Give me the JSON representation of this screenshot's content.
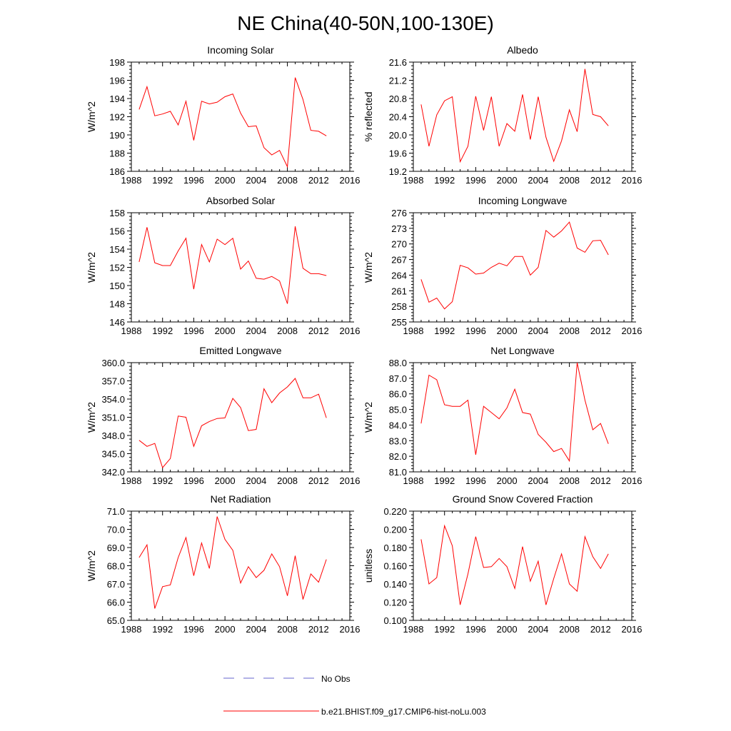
{
  "figure": {
    "title": "NE China(40-50N,100-130E)",
    "colors": {
      "model": "#ff0000",
      "obs": "#6666cc",
      "axis": "#000000"
    }
  },
  "legend": {
    "entries": [
      {
        "label": "No Obs",
        "style": "dashed",
        "color": "#6666cc"
      },
      {
        "label": "b.e21.BHIST.f09_g17.CMIP6-hist-noLu.003",
        "style": "solid",
        "color": "#ff0000"
      }
    ]
  },
  "chart_data": [
    {
      "type": "line",
      "title": "Incoming Solar",
      "ylabel": "W/m^2",
      "xlim": [
        1988,
        2016
      ],
      "xticks": [
        "1988",
        "1992",
        "1996",
        "2000",
        "2004",
        "2008",
        "2012",
        "2016"
      ],
      "ylim": [
        186,
        198
      ],
      "yticks": [
        "186",
        "188",
        "190",
        "192",
        "194",
        "196",
        "198"
      ],
      "x": [
        1989,
        1990,
        1991,
        1992,
        1993,
        1994,
        1995,
        1996,
        1997,
        1998,
        1999,
        2000,
        2001,
        2002,
        2003,
        2004,
        2005,
        2006,
        2007,
        2008,
        2009,
        2010,
        2011,
        2012,
        2013
      ],
      "series": [
        {
          "values": [
            192.8,
            195.3,
            192.1,
            192.3,
            192.6,
            191.1,
            193.7,
            189.4,
            193.7,
            193.4,
            193.6,
            194.2,
            194.5,
            192.4,
            190.9,
            191.0,
            188.6,
            187.8,
            188.3,
            186.5,
            196.3,
            193.9,
            190.5,
            190.4,
            189.9
          ]
        }
      ]
    },
    {
      "type": "line",
      "title": "Albedo",
      "ylabel": "% reflected",
      "xlim": [
        1988,
        2016
      ],
      "xticks": [
        "1988",
        "1992",
        "1996",
        "2000",
        "2004",
        "2008",
        "2012",
        "2016"
      ],
      "ylim": [
        19.2,
        21.6
      ],
      "yticks": [
        "19.2",
        "19.6",
        "20.0",
        "20.4",
        "20.8",
        "21.2",
        "21.6"
      ],
      "x": [
        1989,
        1990,
        1991,
        1992,
        1993,
        1994,
        1995,
        1996,
        1997,
        1998,
        1999,
        2000,
        2001,
        2002,
        2003,
        2004,
        2005,
        2006,
        2007,
        2008,
        2009,
        2010,
        2011,
        2012,
        2013
      ],
      "series": [
        {
          "values": [
            20.67,
            19.75,
            20.44,
            20.75,
            20.84,
            19.41,
            19.75,
            20.85,
            20.1,
            20.84,
            19.75,
            20.25,
            20.08,
            20.89,
            19.9,
            20.84,
            19.95,
            19.42,
            19.87,
            20.55,
            20.07,
            21.45,
            20.45,
            20.4,
            20.2
          ]
        }
      ]
    },
    {
      "type": "line",
      "title": "Absorbed Solar",
      "ylabel": "W/m^2",
      "xlim": [
        1988,
        2016
      ],
      "xticks": [
        "1988",
        "1992",
        "1996",
        "2000",
        "2004",
        "2008",
        "2012",
        "2016"
      ],
      "ylim": [
        146,
        158
      ],
      "yticks": [
        "146",
        "148",
        "150",
        "152",
        "154",
        "156",
        "158"
      ],
      "x": [
        1989,
        1990,
        1991,
        1992,
        1993,
        1994,
        1995,
        1996,
        1997,
        1998,
        1999,
        2000,
        2001,
        2002,
        2003,
        2004,
        2005,
        2006,
        2007,
        2008,
        2009,
        2010,
        2011,
        2012,
        2013
      ],
      "series": [
        {
          "values": [
            152.6,
            156.4,
            152.5,
            152.2,
            152.2,
            153.8,
            155.2,
            149.6,
            154.5,
            152.6,
            155.1,
            154.5,
            155.2,
            151.8,
            152.7,
            150.8,
            150.7,
            151.0,
            150.5,
            148.0,
            156.5,
            151.9,
            151.3,
            151.3,
            151.1
          ]
        }
      ]
    },
    {
      "type": "line",
      "title": "Incoming Longwave",
      "ylabel": "W/m^2",
      "xlim": [
        1988,
        2016
      ],
      "xticks": [
        "1988",
        "1992",
        "1996",
        "2000",
        "2004",
        "2008",
        "2012",
        "2016"
      ],
      "ylim": [
        255,
        276
      ],
      "yticks": [
        "255",
        "258",
        "261",
        "264",
        "267",
        "270",
        "273",
        "276"
      ],
      "x": [
        1989,
        1990,
        1991,
        1992,
        1993,
        1994,
        1995,
        1996,
        1997,
        1998,
        1999,
        2000,
        2001,
        2002,
        2003,
        2004,
        2005,
        2006,
        2007,
        2008,
        2009,
        2010,
        2011,
        2012,
        2013
      ],
      "series": [
        {
          "values": [
            263.2,
            258.8,
            259.6,
            257.5,
            258.9,
            265.9,
            265.4,
            264.2,
            264.4,
            265.5,
            266.3,
            265.8,
            267.6,
            267.6,
            264.0,
            265.5,
            272.6,
            271.3,
            272.5,
            274.2,
            269.2,
            268.4,
            270.6,
            270.7,
            267.9
          ]
        }
      ]
    },
    {
      "type": "line",
      "title": "Emitted Longwave",
      "ylabel": "W/m^2",
      "xlim": [
        1988,
        2016
      ],
      "xticks": [
        "1988",
        "1992",
        "1996",
        "2000",
        "2004",
        "2008",
        "2012",
        "2016"
      ],
      "ylim": [
        342,
        360
      ],
      "yticks": [
        "342.0",
        "345.0",
        "348.0",
        "351.0",
        "354.0",
        "357.0",
        "360.0"
      ],
      "x": [
        1989,
        1990,
        1991,
        1992,
        1993,
        1994,
        1995,
        1996,
        1997,
        1998,
        1999,
        2000,
        2001,
        2002,
        2003,
        2004,
        2005,
        2006,
        2007,
        2008,
        2009,
        2010,
        2011,
        2012,
        2013
      ],
      "series": [
        {
          "values": [
            347.2,
            346.2,
            346.7,
            342.7,
            344.2,
            351.2,
            351.0,
            346.2,
            349.6,
            350.3,
            350.8,
            350.9,
            354.1,
            352.6,
            348.8,
            349.0,
            355.7,
            353.4,
            355.0,
            356.0,
            357.4,
            354.2,
            354.2,
            354.8,
            350.9
          ]
        }
      ]
    },
    {
      "type": "line",
      "title": "Net Longwave",
      "ylabel": "W/m^2",
      "xlim": [
        1988,
        2016
      ],
      "xticks": [
        "1988",
        "1992",
        "1996",
        "2000",
        "2004",
        "2008",
        "2012",
        "2016"
      ],
      "ylim": [
        81,
        88
      ],
      "yticks": [
        "81.0",
        "82.0",
        "83.0",
        "84.0",
        "85.0",
        "86.0",
        "87.0",
        "88.0"
      ],
      "x": [
        1989,
        1990,
        1991,
        1992,
        1993,
        1994,
        1995,
        1996,
        1997,
        1998,
        1999,
        2000,
        2001,
        2002,
        2003,
        2004,
        2005,
        2006,
        2007,
        2008,
        2009,
        2010,
        2011,
        2012,
        2013
      ],
      "series": [
        {
          "values": [
            84.1,
            87.2,
            86.9,
            85.3,
            85.2,
            85.2,
            85.6,
            82.1,
            85.2,
            84.8,
            84.4,
            85.1,
            86.3,
            84.8,
            84.7,
            83.4,
            82.9,
            82.3,
            82.5,
            81.7,
            88.0,
            85.6,
            83.7,
            84.1,
            82.8
          ]
        }
      ]
    },
    {
      "type": "line",
      "title": "Net Radiation",
      "ylabel": "W/m^2",
      "xlim": [
        1988,
        2016
      ],
      "xticks": [
        "1988",
        "1992",
        "1996",
        "2000",
        "2004",
        "2008",
        "2012",
        "2016"
      ],
      "ylim": [
        65,
        71
      ],
      "yticks": [
        "65.0",
        "66.0",
        "67.0",
        "68.0",
        "69.0",
        "70.0",
        "71.0"
      ],
      "x": [
        1989,
        1990,
        1991,
        1992,
        1993,
        1994,
        1995,
        1996,
        1997,
        1998,
        1999,
        2000,
        2001,
        2002,
        2003,
        2004,
        2005,
        2006,
        2007,
        2008,
        2009,
        2010,
        2011,
        2012,
        2013
      ],
      "series": [
        {
          "values": [
            68.45,
            69.15,
            65.65,
            66.85,
            66.95,
            68.45,
            69.55,
            67.45,
            69.25,
            67.85,
            70.7,
            69.45,
            68.85,
            67.05,
            67.95,
            67.35,
            67.75,
            68.65,
            67.95,
            66.35,
            68.55,
            66.15,
            67.55,
            67.1,
            68.35
          ]
        }
      ]
    },
    {
      "type": "line",
      "title": "Ground Snow Covered Fraction",
      "ylabel": "unitless",
      "xlim": [
        1988,
        2016
      ],
      "xticks": [
        "1988",
        "1992",
        "1996",
        "2000",
        "2004",
        "2008",
        "2012",
        "2016"
      ],
      "ylim": [
        0.1,
        0.22
      ],
      "yticks": [
        "0.100",
        "0.120",
        "0.140",
        "0.160",
        "0.180",
        "0.200",
        "0.220"
      ],
      "x": [
        1989,
        1990,
        1991,
        1992,
        1993,
        1994,
        1995,
        1996,
        1997,
        1998,
        1999,
        2000,
        2001,
        2002,
        2003,
        2004,
        2005,
        2006,
        2007,
        2008,
        2009,
        2010,
        2011,
        2012,
        2013
      ],
      "series": [
        {
          "values": [
            0.189,
            0.14,
            0.147,
            0.204,
            0.182,
            0.117,
            0.151,
            0.192,
            0.158,
            0.159,
            0.168,
            0.159,
            0.135,
            0.181,
            0.143,
            0.165,
            0.117,
            0.146,
            0.173,
            0.14,
            0.132,
            0.192,
            0.17,
            0.157,
            0.173
          ]
        }
      ]
    }
  ]
}
